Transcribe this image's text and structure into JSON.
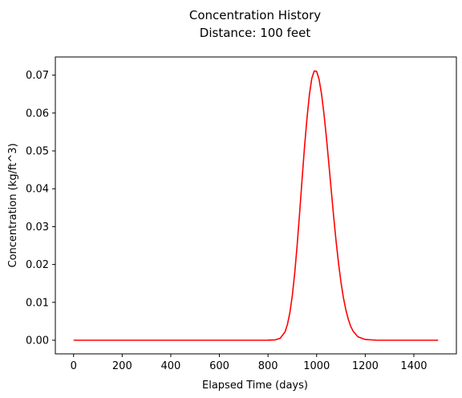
{
  "chart_data": {
    "type": "line",
    "title": "Concentration History",
    "subtitle": "Distance: 100 feet",
    "xlabel": "Elapsed Time (days)",
    "ylabel": "Concentration  (kg/ft^3)",
    "xlim": [
      -75,
      1575
    ],
    "ylim": [
      -0.0036,
      0.0748
    ],
    "x_ticks": [
      0,
      200,
      400,
      600,
      800,
      1000,
      1200,
      1400
    ],
    "y_ticks": [
      0.0,
      0.01,
      0.02,
      0.03,
      0.04,
      0.05,
      0.06,
      0.07
    ],
    "x_tick_labels": [
      "0",
      "200",
      "400",
      "600",
      "800",
      "1000",
      "1200",
      "1400"
    ],
    "y_tick_labels": [
      "0.00",
      "0.01",
      "0.02",
      "0.03",
      "0.04",
      "0.05",
      "0.06",
      "0.07"
    ],
    "grid": false,
    "series": [
      {
        "color": "#ff0000",
        "x": [
          0,
          100,
          200,
          300,
          400,
          500,
          600,
          700,
          750,
          800,
          830,
          850,
          870,
          880,
          890,
          900,
          910,
          920,
          930,
          940,
          950,
          960,
          970,
          980,
          990,
          1000,
          1010,
          1020,
          1030,
          1040,
          1050,
          1060,
          1070,
          1080,
          1090,
          1100,
          1110,
          1120,
          1130,
          1140,
          1150,
          1170,
          1200,
          1250,
          1300,
          1400,
          1500
        ],
        "y": [
          0,
          0,
          0,
          0,
          0,
          0,
          0,
          0,
          0,
          2e-05,
          0.0001,
          0.0005,
          0.0022,
          0.0042,
          0.0073,
          0.0118,
          0.0178,
          0.0252,
          0.0336,
          0.0424,
          0.0509,
          0.0584,
          0.0647,
          0.0691,
          0.0711,
          0.071,
          0.0689,
          0.0651,
          0.0599,
          0.0537,
          0.0468,
          0.0397,
          0.0327,
          0.0262,
          0.0204,
          0.0154,
          0.0113,
          0.0081,
          0.0056,
          0.0037,
          0.0024,
          0.0009,
          0.0002,
          0,
          0,
          0,
          0
        ]
      }
    ]
  }
}
